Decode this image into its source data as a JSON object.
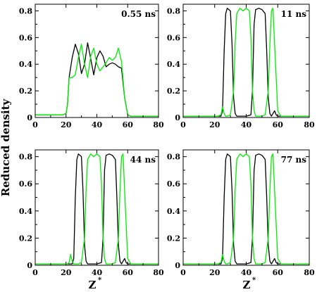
{
  "chart_data": {
    "type": "line",
    "ylabel": "Reduced density",
    "xlabel_base": "Z",
    "xlabel_superscript": "*",
    "xlim": [
      0,
      80
    ],
    "ylim": [
      0,
      0.85
    ],
    "xticks": [
      "0",
      "20",
      "40",
      "60",
      "80"
    ],
    "yticks": [
      "0",
      "0.2",
      "0.4",
      "0.6",
      "0.8"
    ],
    "colors": {
      "series_a": "#000000",
      "series_b": "#00ee00"
    },
    "panels": [
      {
        "label": "0.55 ns",
        "series": [
          {
            "color": "#000000",
            "x": [
              0,
              18,
              20,
              21,
              22,
              24,
              26,
              28,
              30,
              32,
              34,
              36,
              38,
              40,
              42,
              44,
              46,
              48,
              50,
              52,
              54,
              56,
              58,
              60,
              62,
              80
            ],
            "y": [
              0.02,
              0.02,
              0.03,
              0.1,
              0.3,
              0.45,
              0.55,
              0.48,
              0.33,
              0.4,
              0.56,
              0.44,
              0.32,
              0.45,
              0.5,
              0.46,
              0.38,
              0.4,
              0.41,
              0.4,
              0.38,
              0.37,
              0.15,
              0.02,
              0.01,
              0.01
            ]
          },
          {
            "color": "#00ee00",
            "x": [
              0,
              18,
              20,
              21,
              22,
              24,
              26,
              28,
              30,
              32,
              34,
              36,
              38,
              40,
              42,
              44,
              46,
              48,
              50,
              52,
              54,
              56,
              58,
              60,
              62,
              80
            ],
            "y": [
              0.02,
              0.02,
              0.03,
              0.1,
              0.3,
              0.3,
              0.32,
              0.45,
              0.55,
              0.4,
              0.3,
              0.46,
              0.52,
              0.4,
              0.35,
              0.38,
              0.41,
              0.45,
              0.43,
              0.45,
              0.52,
              0.42,
              0.15,
              0.02,
              0.01,
              0.01
            ]
          }
        ]
      },
      {
        "label": "11 ns",
        "series": [
          {
            "color": "#000000",
            "x": [
              0,
              22,
              24,
              25,
              26,
              27,
              28,
              30,
              31,
              32,
              33,
              34,
              36,
              40,
              43,
              44,
              45,
              46,
              48,
              50,
              52,
              53,
              54,
              55,
              56,
              58,
              59,
              60,
              62,
              80
            ],
            "y": [
              0.01,
              0.01,
              0.01,
              0.05,
              0.5,
              0.78,
              0.82,
              0.8,
              0.55,
              0.15,
              0.03,
              0.01,
              0.01,
              0.01,
              0.02,
              0.2,
              0.7,
              0.81,
              0.82,
              0.81,
              0.78,
              0.5,
              0.15,
              0.03,
              0.01,
              0.05,
              0.02,
              0.01,
              0.01,
              0.01
            ]
          },
          {
            "color": "#00ee00",
            "x": [
              0,
              22,
              24,
              25,
              26,
              27,
              28,
              30,
              32,
              33,
              34,
              36,
              38,
              40,
              42,
              43,
              44,
              45,
              46,
              48,
              50,
              52,
              54,
              55,
              56,
              57,
              58,
              60,
              62,
              80
            ],
            "y": [
              0.01,
              0.01,
              0.02,
              0.08,
              0.03,
              0.01,
              0.01,
              0.02,
              0.2,
              0.55,
              0.78,
              0.82,
              0.8,
              0.82,
              0.8,
              0.6,
              0.2,
              0.05,
              0.01,
              0.01,
              0.01,
              0.02,
              0.2,
              0.55,
              0.8,
              0.82,
              0.55,
              0.05,
              0.01,
              0.01
            ]
          }
        ]
      },
      {
        "label": "44 ns",
        "series": [
          {
            "color": "#000000",
            "x": [
              0,
              22,
              24,
              25,
              26,
              27,
              28,
              30,
              31,
              32,
              33,
              34,
              36,
              40,
              43,
              44,
              45,
              46,
              48,
              50,
              52,
              53,
              54,
              55,
              56,
              58,
              59,
              60,
              62,
              80
            ],
            "y": [
              0.01,
              0.01,
              0.01,
              0.05,
              0.5,
              0.78,
              0.82,
              0.8,
              0.55,
              0.15,
              0.03,
              0.01,
              0.01,
              0.01,
              0.02,
              0.2,
              0.7,
              0.81,
              0.82,
              0.81,
              0.78,
              0.5,
              0.15,
              0.03,
              0.01,
              0.05,
              0.02,
              0.01,
              0.01,
              0.01
            ]
          },
          {
            "color": "#00ee00",
            "x": [
              0,
              21,
              22,
              23,
              24,
              25,
              27,
              28,
              30,
              32,
              33,
              34,
              36,
              38,
              40,
              42,
              43,
              44,
              45,
              46,
              48,
              50,
              52,
              54,
              55,
              56,
              57,
              58,
              60,
              62,
              80
            ],
            "y": [
              0.01,
              0.01,
              0.02,
              0.08,
              0.03,
              0.01,
              0.01,
              0.01,
              0.02,
              0.2,
              0.55,
              0.78,
              0.82,
              0.8,
              0.82,
              0.8,
              0.6,
              0.2,
              0.05,
              0.01,
              0.01,
              0.01,
              0.02,
              0.2,
              0.55,
              0.8,
              0.82,
              0.55,
              0.05,
              0.01,
              0.01
            ]
          }
        ]
      },
      {
        "label": "77 ns",
        "series": [
          {
            "color": "#000000",
            "x": [
              0,
              22,
              24,
              25,
              26,
              27,
              28,
              30,
              31,
              32,
              33,
              34,
              36,
              40,
              43,
              44,
              45,
              46,
              48,
              50,
              52,
              53,
              54,
              55,
              56,
              58,
              59,
              60,
              62,
              80
            ],
            "y": [
              0.01,
              0.01,
              0.01,
              0.05,
              0.5,
              0.78,
              0.82,
              0.8,
              0.55,
              0.15,
              0.03,
              0.01,
              0.01,
              0.01,
              0.02,
              0.2,
              0.7,
              0.81,
              0.82,
              0.81,
              0.78,
              0.5,
              0.15,
              0.03,
              0.01,
              0.05,
              0.02,
              0.01,
              0.01,
              0.01
            ]
          },
          {
            "color": "#00ee00",
            "x": [
              0,
              22,
              24,
              25,
              26,
              27,
              28,
              30,
              32,
              33,
              34,
              36,
              38,
              40,
              42,
              43,
              44,
              45,
              46,
              48,
              50,
              52,
              54,
              55,
              56,
              57,
              58,
              60,
              62,
              80
            ],
            "y": [
              0.01,
              0.01,
              0.02,
              0.08,
              0.03,
              0.01,
              0.01,
              0.02,
              0.2,
              0.55,
              0.78,
              0.82,
              0.8,
              0.82,
              0.8,
              0.6,
              0.2,
              0.05,
              0.01,
              0.01,
              0.01,
              0.02,
              0.2,
              0.55,
              0.8,
              0.82,
              0.55,
              0.05,
              0.01,
              0.01
            ]
          }
        ]
      }
    ]
  }
}
